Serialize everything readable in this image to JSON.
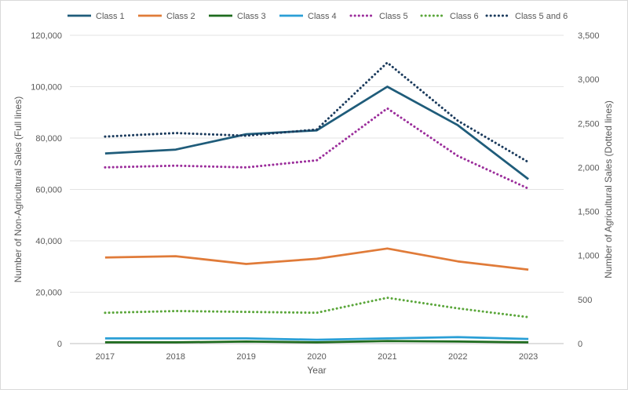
{
  "chart_data": {
    "type": "line",
    "title": "",
    "xlabel": "Year",
    "ylabel_left": "Number of Non-Agricultural Sales (Full lines)",
    "ylabel_right": "Number of Agricultural Sales (Dotted lines)",
    "categories": [
      "2017",
      "2018",
      "2019",
      "2020",
      "2021",
      "2022",
      "2023"
    ],
    "y_left": {
      "min": 0,
      "max": 120000,
      "ticks": [
        0,
        20000,
        40000,
        60000,
        80000,
        100000,
        120000
      ],
      "tick_labels": [
        "0",
        "20,000",
        "40,000",
        "60,000",
        "80,000",
        "100,000",
        "120,000"
      ]
    },
    "y_right": {
      "min": 0,
      "max": 3500,
      "ticks": [
        0,
        500,
        1000,
        1500,
        2000,
        2500,
        3000,
        3500
      ],
      "tick_labels": [
        "0",
        "500",
        "1,000",
        "1,500",
        "2,000",
        "2,500",
        "3,000",
        "3,500"
      ]
    },
    "grid": true,
    "legend_position": "top",
    "series": [
      {
        "name": "Class 1",
        "axis": "left",
        "style": "solid",
        "color": "#1f5c7a",
        "values": [
          74000,
          75500,
          81500,
          83000,
          100000,
          85000,
          64000
        ]
      },
      {
        "name": "Class 2",
        "axis": "left",
        "style": "solid",
        "color": "#e07b39",
        "values": [
          33500,
          34000,
          31000,
          33000,
          37000,
          32000,
          28800
        ]
      },
      {
        "name": "Class 3",
        "axis": "left",
        "style": "solid",
        "color": "#1e6b1e",
        "values": [
          500,
          500,
          800,
          500,
          1000,
          800,
          500
        ]
      },
      {
        "name": "Class 4",
        "axis": "left",
        "style": "solid",
        "color": "#2a9fd6",
        "values": [
          2000,
          2000,
          2000,
          1500,
          2000,
          2500,
          1800
        ]
      },
      {
        "name": "Class 5",
        "axis": "right",
        "style": "dotted",
        "color": "#9b2d9b",
        "values": [
          2000,
          2020,
          2000,
          2080,
          2670,
          2130,
          1760
        ]
      },
      {
        "name": "Class 6",
        "axis": "right",
        "style": "dotted",
        "color": "#5aa63a",
        "values": [
          350,
          370,
          360,
          350,
          520,
          400,
          300
        ]
      },
      {
        "name": "Class 5 and 6",
        "axis": "right",
        "style": "dotted",
        "color": "#1a3a5c",
        "values": [
          2350,
          2390,
          2360,
          2430,
          3190,
          2530,
          2060
        ]
      }
    ]
  }
}
